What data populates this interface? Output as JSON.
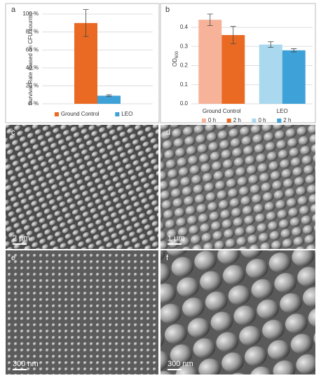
{
  "chart_data": [
    {
      "type": "bar",
      "panel_label": "a",
      "y_label": "Survival Rate (based on CFU counts)",
      "categories": [
        null
      ],
      "series": [
        {
          "name": "Ground Control",
          "color": "#ea6a24",
          "values": [
            90
          ],
          "errors": [
            15
          ]
        },
        {
          "name": "LEO",
          "color": "#3ea1d8",
          "values": [
            9
          ],
          "errors": [
            1
          ]
        }
      ],
      "ylim": [
        0,
        100
      ],
      "yticks": [
        {
          "value": 0,
          "label": "0 %"
        },
        {
          "value": 20,
          "label": "20 %"
        },
        {
          "value": 40,
          "label": "40 %"
        },
        {
          "value": 60,
          "label": "60 %"
        },
        {
          "value": 80,
          "label": "80 %"
        },
        {
          "value": 100,
          "label": "100 %"
        }
      ],
      "grid": true
    },
    {
      "type": "bar",
      "panel_label": "b",
      "y_label": "OD",
      "y_label_sub": "600",
      "categories": [
        "Ground Control",
        "LEO"
      ],
      "series": [
        {
          "name": "0 h",
          "color": "#f7b39a",
          "values": [
            0.44,
            null
          ],
          "errors": [
            0.03,
            null
          ]
        },
        {
          "name": "2 h",
          "color": "#ea6a24",
          "values": [
            0.36,
            null
          ],
          "errors": [
            0.045,
            null
          ]
        },
        {
          "name": "0 h",
          "color": "#a9d8ef",
          "values": [
            null,
            0.31
          ],
          "errors": [
            null,
            0.015
          ]
        },
        {
          "name": "2 h",
          "color": "#3ea1d8",
          "values": [
            null,
            0.28
          ],
          "errors": [
            null,
            0.008
          ]
        }
      ],
      "ylim": [
        0,
        0.47
      ],
      "yticks": [
        {
          "value": 0,
          "label": "0.0"
        },
        0.1,
        0.2,
        0.3,
        0.4
      ],
      "grid": true
    }
  ],
  "panels": [
    {
      "label": "c",
      "scale": "2 µm"
    },
    {
      "label": "d",
      "scale": "1 µm"
    },
    {
      "label": "e",
      "scale": "300 nm"
    },
    {
      "label": "f",
      "scale": "300 nm"
    }
  ]
}
